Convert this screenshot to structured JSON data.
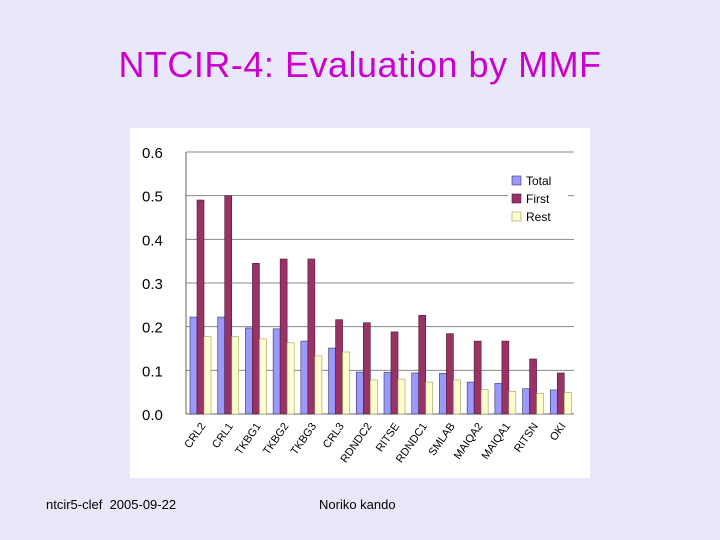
{
  "slide": {
    "title": "NTCIR-4: Evaluation by MMF",
    "footer_left": "ntcir5-clef  2005-09-22",
    "footer_author": "Noriko kando"
  },
  "colors": {
    "background": "#e8e8fa",
    "title": "#cc00cc",
    "total": "#9999ff",
    "first": "#993366",
    "rest": "#ffffcc"
  },
  "chart_data": {
    "type": "bar",
    "title": "",
    "xlabel": "",
    "ylabel": "",
    "ylim": [
      0,
      0.6
    ],
    "yticks": [
      "0.0",
      "0.1",
      "0.2",
      "0.3",
      "0.4",
      "0.5",
      "0.6"
    ],
    "grid": true,
    "legend_position": "top-right",
    "categories": [
      "CRL2",
      "CRL1",
      "TKBG1",
      "TKBG2",
      "TKBG3",
      "CRL3",
      "RDNDC2",
      "RITSE",
      "RDNDC1",
      "SMLAB",
      "MAIQA2",
      "MAIQA1",
      "RITSN",
      "OKI"
    ],
    "series": [
      {
        "name": "Total",
        "values": [
          0.222,
          0.222,
          0.197,
          0.195,
          0.167,
          0.151,
          0.096,
          0.095,
          0.094,
          0.093,
          0.073,
          0.07,
          0.058,
          0.055
        ]
      },
      {
        "name": "First",
        "values": [
          0.49,
          0.5,
          0.345,
          0.355,
          0.355,
          0.216,
          0.209,
          0.188,
          0.226,
          0.184,
          0.167,
          0.167,
          0.126,
          0.094
        ]
      },
      {
        "name": "Rest",
        "values": [
          0.177,
          0.177,
          0.172,
          0.163,
          0.133,
          0.142,
          0.078,
          0.08,
          0.073,
          0.078,
          0.056,
          0.052,
          0.047,
          0.049
        ]
      }
    ]
  }
}
